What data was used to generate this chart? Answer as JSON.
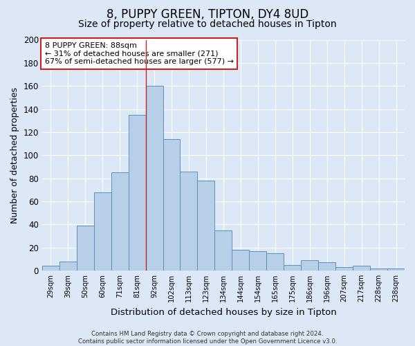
{
  "title": "8, PUPPY GREEN, TIPTON, DY4 8UD",
  "subtitle": "Size of property relative to detached houses in Tipton",
  "xlabel": "Distribution of detached houses by size in Tipton",
  "ylabel": "Number of detached properties",
  "categories": [
    "29sqm",
    "39sqm",
    "50sqm",
    "60sqm",
    "71sqm",
    "81sqm",
    "92sqm",
    "102sqm",
    "113sqm",
    "123sqm",
    "134sqm",
    "144sqm",
    "154sqm",
    "165sqm",
    "175sqm",
    "186sqm",
    "196sqm",
    "207sqm",
    "217sqm",
    "228sqm",
    "238sqm"
  ],
  "values": [
    4,
    8,
    39,
    68,
    85,
    135,
    160,
    114,
    86,
    78,
    35,
    18,
    17,
    15,
    5,
    9,
    7,
    3,
    4,
    2,
    2
  ],
  "bar_color": "#b8cfe8",
  "bar_edge_color": "#5a8fc0",
  "background_color": "#dce8f5",
  "grid_color": "#ffffff",
  "red_line_x": 5.5,
  "annotation_text": "8 PUPPY GREEN: 88sqm\n← 31% of detached houses are smaller (271)\n67% of semi-detached houses are larger (577) →",
  "ylim": [
    0,
    200
  ],
  "yticks": [
    0,
    20,
    40,
    60,
    80,
    100,
    120,
    140,
    160,
    180,
    200
  ],
  "footer_text": "Contains HM Land Registry data © Crown copyright and database right 2024.\nContains public sector information licensed under the Open Government Licence v3.0.",
  "title_fontsize": 12,
  "subtitle_fontsize": 10,
  "xlabel_fontsize": 9.5,
  "ylabel_fontsize": 9
}
